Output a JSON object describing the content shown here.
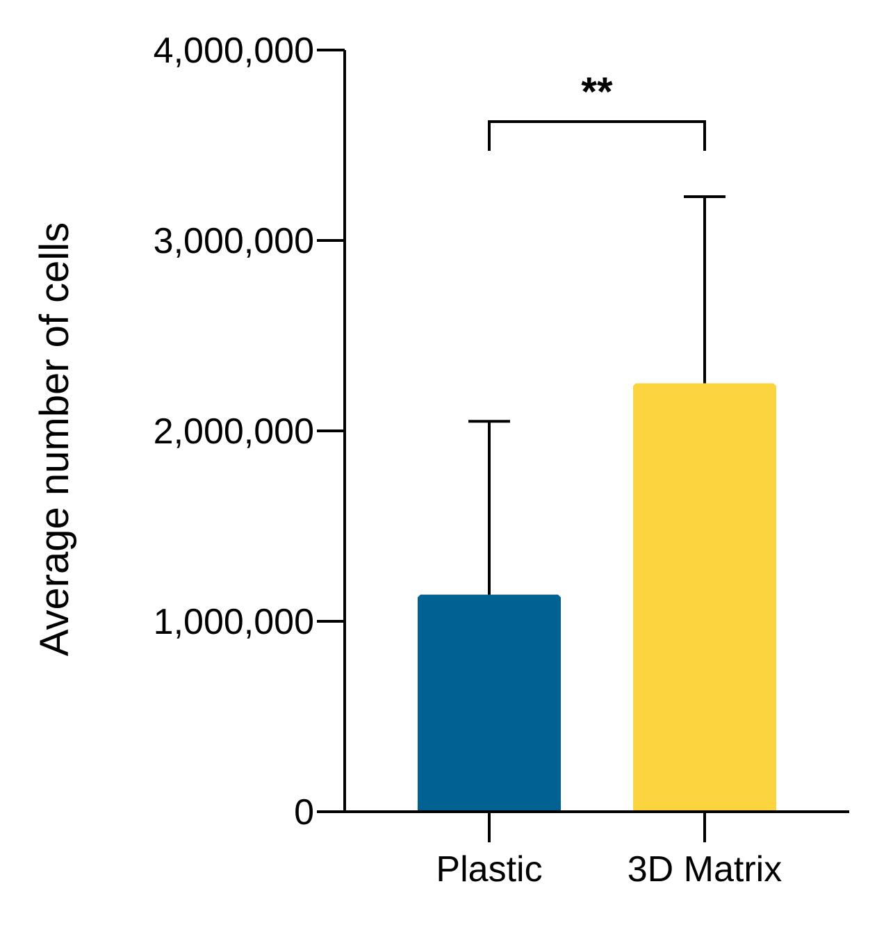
{
  "chart_data": {
    "type": "bar",
    "title": "",
    "xlabel": "",
    "ylabel": "Average number of cells",
    "categories": [
      "Plastic",
      "3D Matrix"
    ],
    "values": [
      1140000,
      2250000
    ],
    "error_upper": [
      2050000,
      3230000
    ],
    "colors": [
      "#006192",
      "#fcd440"
    ],
    "ylim": [
      0,
      4000000
    ],
    "yticks": [
      0,
      1000000,
      2000000,
      3000000,
      4000000
    ],
    "ytick_labels": [
      "0",
      "1,000,000",
      "2,000,000",
      "3,000,000",
      "4,000,000"
    ],
    "grid": false,
    "legend": "none",
    "annotations": [
      {
        "type": "significance",
        "between": [
          "Plastic",
          "3D Matrix"
        ],
        "label": "**"
      }
    ]
  }
}
